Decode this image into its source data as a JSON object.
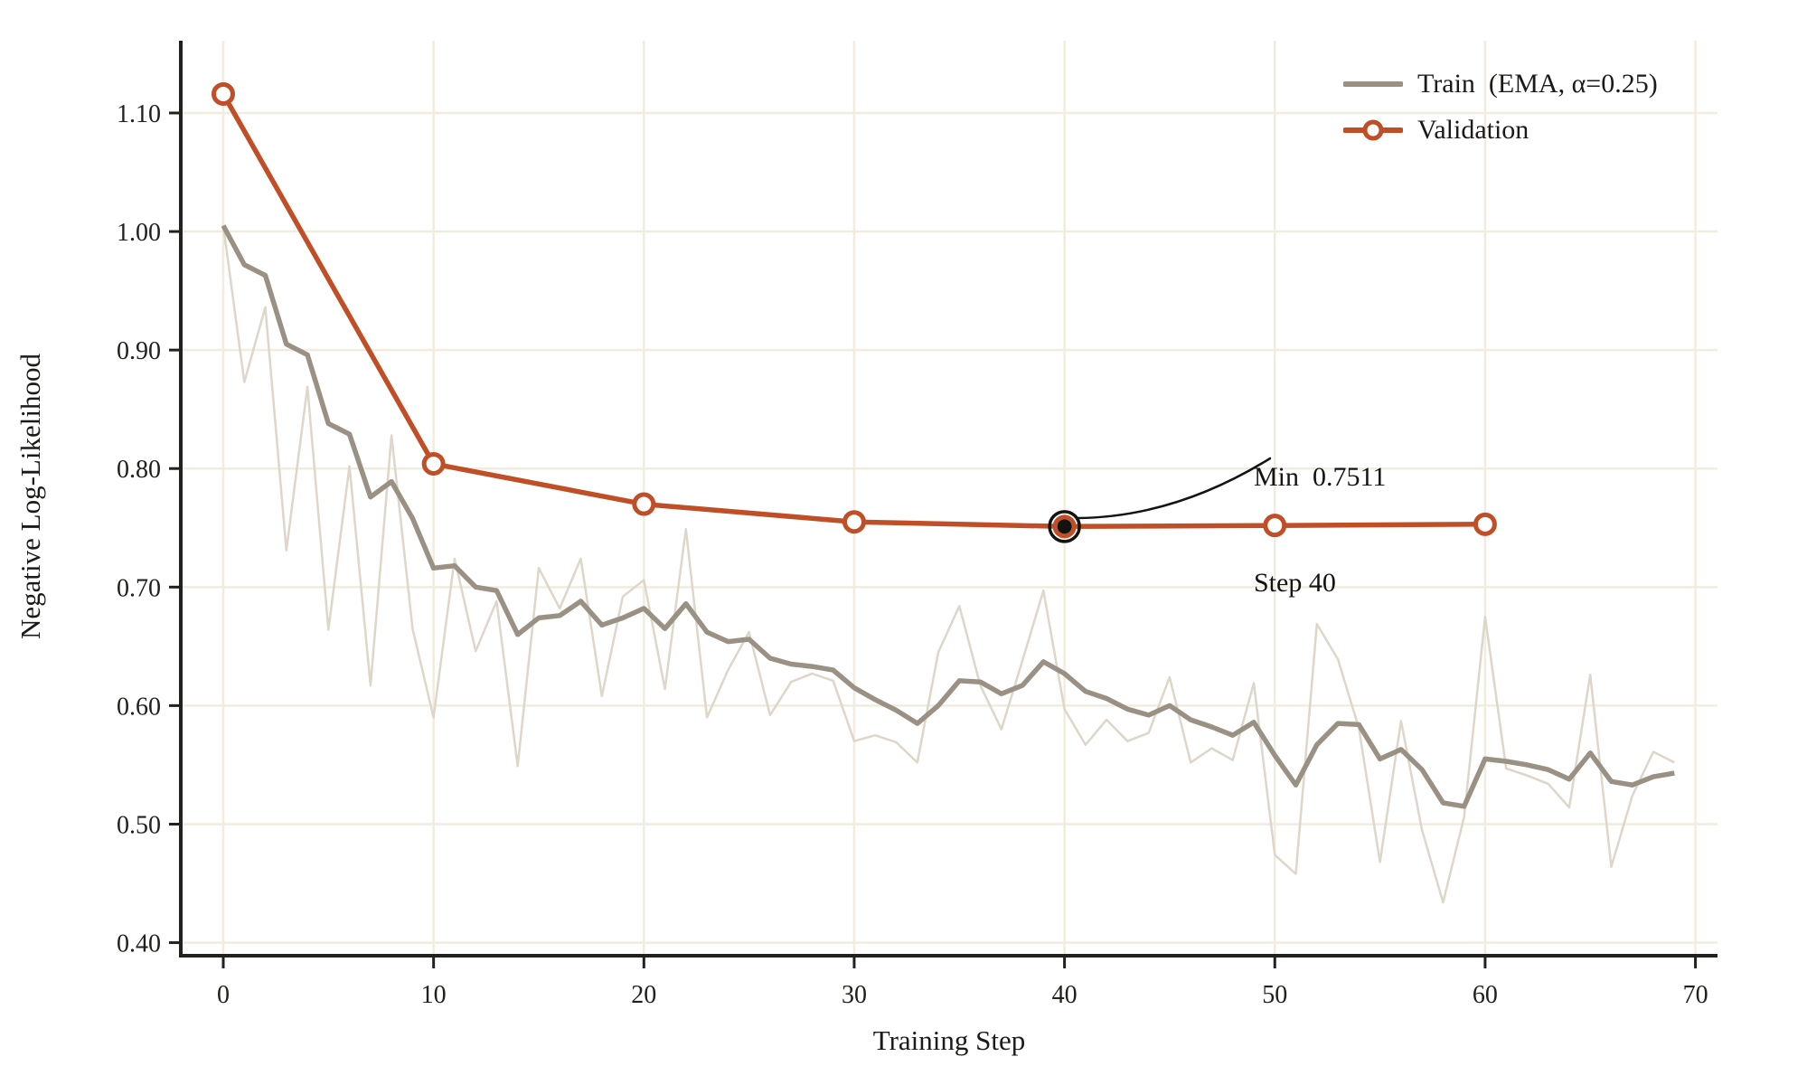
{
  "figure": {
    "background": "#ffffff"
  },
  "colors": {
    "validation_line": "#c04e27",
    "train_ema_line": "#9a9184",
    "train_raw_line": "#ddd6c9",
    "gridline": "#f2ecdf",
    "axis_spine": "#23211d",
    "tick_text": "#22201c",
    "annotation_ink": "#15130f",
    "marker_fill": "#ffffff"
  },
  "legend": {
    "train": "Train  (EMA, α=0.25)",
    "validation": "Validation"
  },
  "annotation": {
    "line1": "Min  0.7511",
    "line2": "Step 40",
    "target_step": 40,
    "target_value": 0.7511
  },
  "chart_data": {
    "type": "line",
    "title": "",
    "xlabel": "Training Step",
    "ylabel": "Negative Log-Likelihood",
    "grid": true,
    "legend_position": "upper right",
    "xlim": [
      -2.02,
      71.05
    ],
    "ylim": [
      0.389,
      1.161
    ],
    "x_ticks": [
      0,
      10,
      20,
      30,
      40,
      50,
      60,
      70
    ],
    "y_ticks": [
      0.4,
      0.5,
      0.6,
      0.7,
      0.8,
      0.9,
      1.0,
      1.1
    ],
    "y_tick_labels": [
      "0.40",
      "0.50",
      "0.60",
      "0.70",
      "0.80",
      "0.90",
      "1.00",
      "1.10"
    ],
    "ema_alpha": 0.25,
    "series": [
      {
        "name": "Train (raw)",
        "role": "train_raw",
        "x0": 0,
        "dx": 1,
        "values": [
          1.005,
          0.873,
          0.936,
          0.731,
          0.869,
          0.664,
          0.802,
          0.617,
          0.828,
          0.665,
          0.59,
          0.724,
          0.646,
          0.688,
          0.549,
          0.716,
          0.682,
          0.724,
          0.608,
          0.692,
          0.706,
          0.614,
          0.749,
          0.59,
          0.63,
          0.662,
          0.592,
          0.62,
          0.627,
          0.621,
          0.57,
          0.575,
          0.569,
          0.552,
          0.645,
          0.684,
          0.617,
          0.58,
          0.638,
          0.697,
          0.597,
          0.567,
          0.588,
          0.57,
          0.577,
          0.624,
          0.552,
          0.564,
          0.554,
          0.619,
          0.474,
          0.458,
          0.669,
          0.639,
          0.581,
          0.468,
          0.587,
          0.495,
          0.434,
          0.506,
          0.675,
          0.547,
          0.541,
          0.534,
          0.514,
          0.626,
          0.464,
          0.524,
          0.561,
          0.552
        ]
      },
      {
        "name": "Train  (EMA, α=0.25)",
        "role": "train_ema",
        "x0": 0,
        "dx": 1,
        "values": [
          1.005,
          0.972,
          0.963,
          0.905,
          0.896,
          0.838,
          0.829,
          0.776,
          0.789,
          0.758,
          0.716,
          0.718,
          0.7,
          0.697,
          0.66,
          0.674,
          0.676,
          0.688,
          0.668,
          0.674,
          0.682,
          0.665,
          0.686,
          0.662,
          0.654,
          0.656,
          0.64,
          0.635,
          0.633,
          0.63,
          0.615,
          0.605,
          0.596,
          0.585,
          0.6,
          0.621,
          0.62,
          0.61,
          0.617,
          0.637,
          0.627,
          0.612,
          0.606,
          0.597,
          0.592,
          0.6,
          0.588,
          0.582,
          0.575,
          0.586,
          0.558,
          0.533,
          0.567,
          0.585,
          0.584,
          0.555,
          0.563,
          0.546,
          0.518,
          0.515,
          0.555,
          0.553,
          0.55,
          0.546,
          0.538,
          0.56,
          0.536,
          0.533,
          0.54,
          0.543
        ]
      },
      {
        "name": "Validation",
        "role": "validation",
        "marker": "circle",
        "x": [
          0,
          10,
          20,
          30,
          40,
          50,
          60
        ],
        "values": [
          1.116,
          0.804,
          0.77,
          0.755,
          0.7511,
          0.752,
          0.753
        ]
      }
    ],
    "annotations": [
      {
        "text": "Min  0.7511\nStep 40",
        "step": 40,
        "value": 0.7511
      }
    ]
  }
}
